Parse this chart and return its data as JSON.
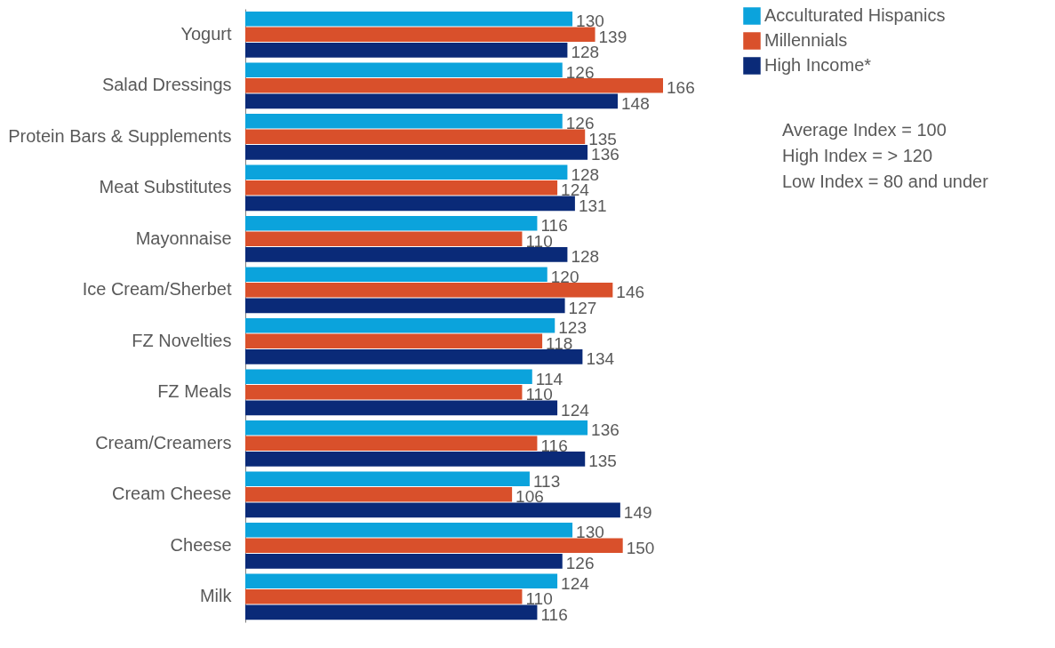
{
  "chart_data": {
    "type": "bar",
    "orientation": "horizontal",
    "categories": [
      "Yogurt",
      "Salad Dressings",
      "Protein Bars & Supplements",
      "Meat Substitutes",
      "Mayonnaise",
      "Ice Cream/Sherbet",
      "FZ Novelties",
      "FZ Meals",
      "Cream/Creamers",
      "Cream Cheese",
      "Cheese",
      "Milk"
    ],
    "series": [
      {
        "name": "Acculturated Hispanics",
        "color": "#0ba3dc",
        "values": [
          130,
          126,
          126,
          128,
          116,
          120,
          123,
          114,
          136,
          113,
          130,
          124
        ]
      },
      {
        "name": "Millennials",
        "color": "#d9502b",
        "values": [
          139,
          166,
          135,
          124,
          110,
          146,
          118,
          110,
          116,
          106,
          150,
          110
        ]
      },
      {
        "name": "High Income*",
        "color": "#0a2a78",
        "values": [
          128,
          148,
          136,
          131,
          128,
          127,
          134,
          124,
          135,
          149,
          126,
          116
        ]
      }
    ],
    "data_labels": true,
    "legend": "top right",
    "grid": false,
    "annotations": [
      "Average Index = 100",
      "High Index = > 120",
      "Low Index = 80 and under"
    ]
  }
}
